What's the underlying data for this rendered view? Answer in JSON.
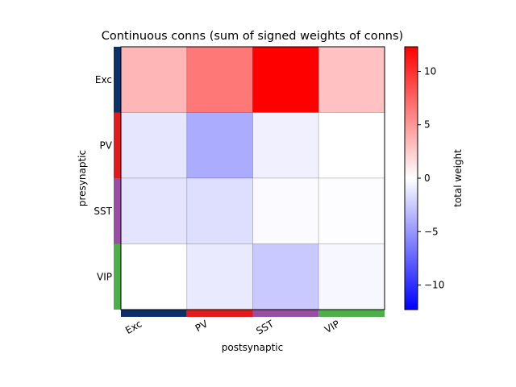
{
  "chart_data": {
    "type": "heatmap",
    "title": "Continuous conns (sum of signed weights of conns)",
    "xlabel": "postsynaptic",
    "ylabel": "presynaptic",
    "rows": [
      "Exc",
      "PV",
      "SST",
      "VIP"
    ],
    "cols": [
      "Exc",
      "PV",
      "SST",
      "VIP"
    ],
    "values": [
      [
        3.5,
        6.5,
        12.3,
        3.0
      ],
      [
        -1.2,
        -4.0,
        -0.7,
        0.0
      ],
      [
        -1.3,
        -1.6,
        -0.2,
        -0.1
      ],
      [
        0.0,
        -1.0,
        -2.6,
        -0.4
      ]
    ],
    "group_colors": {
      "Exc": "#0d3068",
      "PV": "#e31a1c",
      "SST": "#984ea3",
      "VIP": "#4daf4a"
    },
    "colorbar": {
      "label": "total weight",
      "vmin": -12.3,
      "vmax": 12.3,
      "ticks": [
        -10,
        -5,
        0,
        5,
        10
      ],
      "tick_labels": [
        "−10",
        "−5",
        "0",
        "5",
        "10"
      ],
      "colormap": "bwr"
    }
  }
}
